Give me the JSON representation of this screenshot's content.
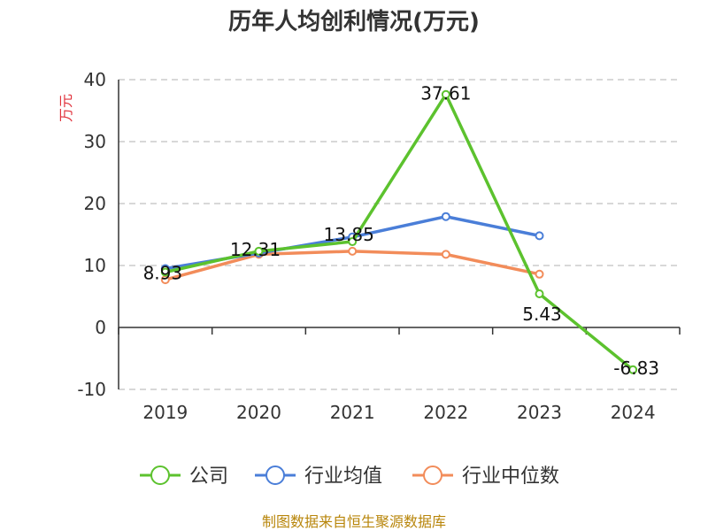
{
  "chart_data": {
    "type": "line",
    "title": "历年人均创利情况(万元)",
    "ylabel": "万元",
    "categories": [
      "2019",
      "2020",
      "2021",
      "2022",
      "2023",
      "2024"
    ],
    "ylim": [
      -10,
      40
    ],
    "yticks": [
      -10,
      0,
      10,
      20,
      30,
      40
    ],
    "grid": true,
    "legend_position": "bottom",
    "series": [
      {
        "name": "公司",
        "color": "#5cc22e",
        "values": [
          8.93,
          12.31,
          13.85,
          37.61,
          5.43,
          -6.83
        ],
        "labels": [
          "8.93",
          "12.31",
          "13.85",
          "37.61",
          "5.43",
          "-6.83"
        ]
      },
      {
        "name": "行业均值",
        "color": "#4a7ed8",
        "values": [
          9.5,
          12.0,
          14.6,
          17.9,
          14.8,
          null
        ]
      },
      {
        "name": "行业中位数",
        "color": "#f28c5a",
        "values": [
          7.7,
          11.8,
          12.3,
          11.8,
          8.6,
          null
        ]
      }
    ]
  },
  "source": "制图数据来自恒生聚源数据库"
}
